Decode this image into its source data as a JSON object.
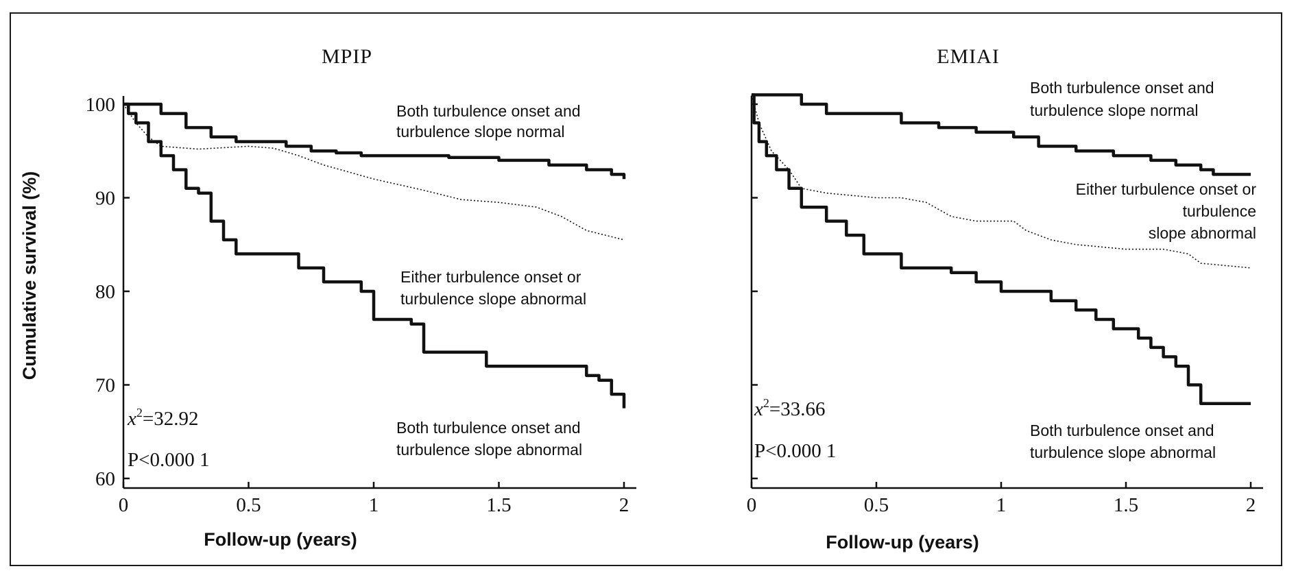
{
  "chart_data": [
    {
      "type": "line",
      "title": "MPIP",
      "xlabel": "Follow-up (years)",
      "ylabel": "Cumulative survival (%)",
      "xlim": [
        0,
        2
      ],
      "ylim": [
        60,
        100
      ],
      "x_ticks": [
        "0",
        "0.5",
        "1",
        "1.5",
        "2"
      ],
      "y_ticks": [
        "100",
        "90",
        "80",
        "70",
        "60"
      ],
      "stat_chi": "=32.92",
      "stat_p": "P<0.000 1",
      "annotations": [
        {
          "lines": [
            "Both turbulence onset and",
            "turbulence slope normal"
          ]
        },
        {
          "lines": [
            "Either turbulence onset or",
            "turbulence slope abnormal"
          ]
        },
        {
          "lines": [
            "Both turbulence onset and",
            "turbulence slope abnormal"
          ]
        }
      ],
      "series": [
        {
          "style": "solid-thick",
          "x": [
            0,
            0.05,
            0.15,
            0.25,
            0.35,
            0.45,
            0.55,
            0.65,
            0.75,
            0.85,
            0.95,
            1.1,
            1.3,
            1.5,
            1.7,
            1.85,
            1.95,
            2.0
          ],
          "y": [
            100,
            100,
            99,
            97.5,
            96.5,
            96,
            96,
            95.5,
            95,
            94.8,
            94.5,
            94.5,
            94.3,
            94,
            93.5,
            93,
            92.5,
            92
          ]
        },
        {
          "style": "dotted",
          "x": [
            0,
            0.05,
            0.1,
            0.15,
            0.3,
            0.5,
            0.6,
            0.7,
            0.8,
            1.0,
            1.2,
            1.35,
            1.5,
            1.65,
            1.75,
            1.85,
            2.0
          ],
          "y": [
            100,
            98,
            96.5,
            95.5,
            95.2,
            95.5,
            95.3,
            94.5,
            93.5,
            92,
            90.8,
            89.8,
            89.5,
            89,
            88,
            86.5,
            85.5
          ]
        },
        {
          "style": "solid-thick",
          "x": [
            0,
            0.02,
            0.05,
            0.1,
            0.15,
            0.2,
            0.25,
            0.3,
            0.35,
            0.4,
            0.45,
            0.55,
            0.65,
            0.7,
            0.8,
            0.95,
            1.0,
            1.15,
            1.2,
            1.4,
            1.45,
            1.75,
            1.85,
            1.9,
            1.95,
            2.0
          ],
          "y": [
            100,
            99,
            98,
            96,
            94.5,
            93,
            91,
            90.5,
            87.5,
            85.5,
            84,
            84,
            84,
            82.5,
            81,
            80,
            77,
            76.5,
            73.5,
            73.5,
            72,
            72,
            71,
            70.5,
            69,
            67.5
          ]
        }
      ]
    },
    {
      "type": "line",
      "title": "EMIAI",
      "xlabel": "Follow-up (years)",
      "ylabel": "",
      "xlim": [
        0,
        2
      ],
      "ylim": [
        60,
        100
      ],
      "x_ticks": [
        "0",
        "0.5",
        "1",
        "1.5",
        "2"
      ],
      "y_ticks": [],
      "stat_chi": "=33.66",
      "stat_p": "P<0.000 1",
      "annotations": [
        {
          "lines": [
            "Both turbulence onset and",
            "turbulence slope normal"
          ]
        },
        {
          "lines": [
            "Either turbulence onset or",
            "turbulence",
            "slope abnormal"
          ]
        },
        {
          "lines": [
            "Both turbulence onset and",
            "turbulence slope abnormal"
          ]
        }
      ],
      "series": [
        {
          "style": "solid-thick",
          "x": [
            0,
            0.15,
            0.2,
            0.3,
            0.4,
            0.6,
            0.75,
            0.9,
            1.05,
            1.15,
            1.3,
            1.45,
            1.6,
            1.7,
            1.8,
            1.85,
            2.0
          ],
          "y": [
            101,
            101,
            100,
            99,
            99,
            98,
            97.5,
            97,
            96.5,
            95.5,
            95,
            94.5,
            94,
            93.5,
            93,
            92.5,
            92.5
          ]
        },
        {
          "style": "dotted",
          "x": [
            0,
            0.03,
            0.08,
            0.15,
            0.2,
            0.3,
            0.5,
            0.6,
            0.7,
            0.8,
            0.9,
            1.05,
            1.1,
            1.2,
            1.3,
            1.5,
            1.65,
            1.75,
            1.8,
            2.0
          ],
          "y": [
            101,
            98,
            95,
            93,
            91,
            90.5,
            90,
            90,
            89.5,
            88,
            87.5,
            87.5,
            86.5,
            85.5,
            85,
            84.5,
            84.5,
            84,
            83,
            82.5
          ]
        },
        {
          "style": "solid-thick",
          "x": [
            0,
            0.01,
            0.03,
            0.06,
            0.1,
            0.15,
            0.2,
            0.3,
            0.38,
            0.45,
            0.6,
            0.7,
            0.8,
            0.9,
            1.0,
            1.1,
            1.2,
            1.3,
            1.38,
            1.45,
            1.55,
            1.6,
            1.65,
            1.7,
            1.75,
            1.8,
            2.0
          ],
          "y": [
            101,
            98,
            96,
            94.5,
            93,
            91,
            89,
            87.5,
            86,
            84,
            82.5,
            82.5,
            82,
            81,
            80,
            80,
            79,
            78,
            77,
            76,
            75,
            74,
            73,
            72,
            70,
            68,
            68
          ]
        }
      ]
    }
  ]
}
